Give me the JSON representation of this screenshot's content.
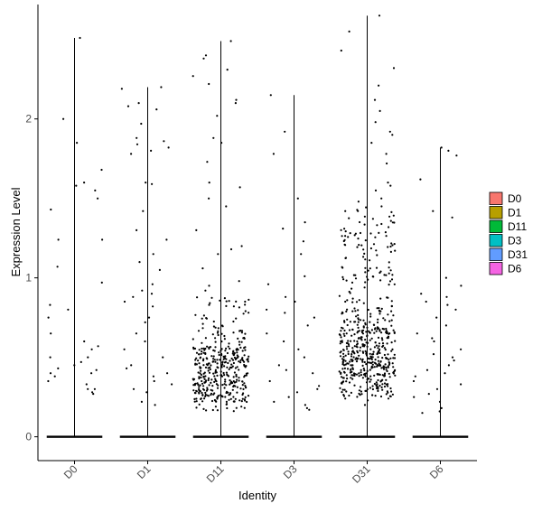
{
  "chart_data": {
    "type": "violin",
    "title": "",
    "xlabel": "Identity",
    "ylabel": "Expression Level",
    "ylim": [
      -0.15,
      2.72
    ],
    "yticks": [
      0,
      1,
      2
    ],
    "grid": false,
    "legend_placement": "right",
    "categories": [
      "D0",
      "D1",
      "D11",
      "D3",
      "D31",
      "D6"
    ],
    "colors": {
      "D0": "#F8766D",
      "D1": "#B79F00",
      "D11": "#00BA38",
      "D3": "#00BFC4",
      "D31": "#619CFF",
      "D6": "#F564E3"
    },
    "groups": [
      {
        "name": "D0",
        "max": 2.51,
        "nonzero_count": 45,
        "points": [
          2.51,
          2.0,
          1.85,
          1.68,
          1.6,
          1.58,
          1.55,
          1.5,
          1.43,
          1.24,
          1.24,
          1.07,
          0.97,
          0.83,
          0.8,
          0.75,
          0.65,
          0.6,
          0.57,
          0.55,
          0.5,
          0.5,
          0.47,
          0.45,
          0.43,
          0.42,
          0.4,
          0.4,
          0.38,
          0.35,
          0.33,
          0.3,
          0.3,
          0.28,
          0.27
        ]
      },
      {
        "name": "D1",
        "max": 2.2,
        "nonzero_count": 60,
        "points": [
          2.2,
          2.19,
          2.1,
          2.08,
          2.06,
          1.97,
          1.88,
          1.86,
          1.84,
          1.82,
          1.8,
          1.78,
          1.6,
          1.59,
          1.42,
          1.3,
          1.24,
          1.15,
          1.1,
          1.05,
          0.96,
          0.92,
          0.9,
          0.88,
          0.85,
          0.82,
          0.75,
          0.72,
          0.65,
          0.6,
          0.55,
          0.5,
          0.45,
          0.43,
          0.4,
          0.38,
          0.35,
          0.33,
          0.3,
          0.28,
          0.22,
          0.2
        ]
      },
      {
        "name": "D11",
        "max": 2.49,
        "nonzero_count": 420,
        "points": [
          2.49,
          2.4,
          2.38,
          2.31,
          2.27,
          2.22,
          2.12,
          2.1,
          2.02,
          1.88,
          1.85,
          1.73,
          1.6,
          1.57,
          1.5,
          1.45,
          1.3,
          1.2,
          1.18,
          1.15,
          1.06,
          0.98,
          0.95,
          0.92
        ]
      },
      {
        "name": "D3",
        "max": 2.15,
        "nonzero_count": 55,
        "points": [
          2.15,
          1.92,
          1.78,
          1.5,
          1.35,
          1.31,
          1.23,
          1.15,
          1.01,
          0.96,
          0.88,
          0.85,
          0.8,
          0.78,
          0.75,
          0.7,
          0.65,
          0.6,
          0.55,
          0.5,
          0.45,
          0.42,
          0.4,
          0.35,
          0.32,
          0.3,
          0.28,
          0.25,
          0.22,
          0.2,
          0.18,
          0.17
        ]
      },
      {
        "name": "D31",
        "max": 2.65,
        "nonzero_count": 560,
        "points": [
          2.65,
          2.55,
          2.43,
          2.32,
          2.21,
          2.12,
          2.05,
          1.98,
          1.92,
          1.9,
          1.85,
          1.78,
          1.72,
          1.6,
          1.58,
          1.55,
          1.5,
          1.48,
          1.45,
          1.42
        ]
      },
      {
        "name": "D6",
        "max": 1.82,
        "nonzero_count": 45,
        "points": [
          1.82,
          1.8,
          1.77,
          1.62,
          1.42,
          1.38,
          1.0,
          0.95,
          0.9,
          0.88,
          0.85,
          0.83,
          0.8,
          0.75,
          0.7,
          0.65,
          0.62,
          0.6,
          0.55,
          0.52,
          0.5,
          0.48,
          0.45,
          0.42,
          0.4,
          0.38,
          0.35,
          0.33,
          0.3,
          0.27,
          0.25,
          0.22,
          0.18,
          0.16,
          0.15
        ]
      }
    ]
  }
}
